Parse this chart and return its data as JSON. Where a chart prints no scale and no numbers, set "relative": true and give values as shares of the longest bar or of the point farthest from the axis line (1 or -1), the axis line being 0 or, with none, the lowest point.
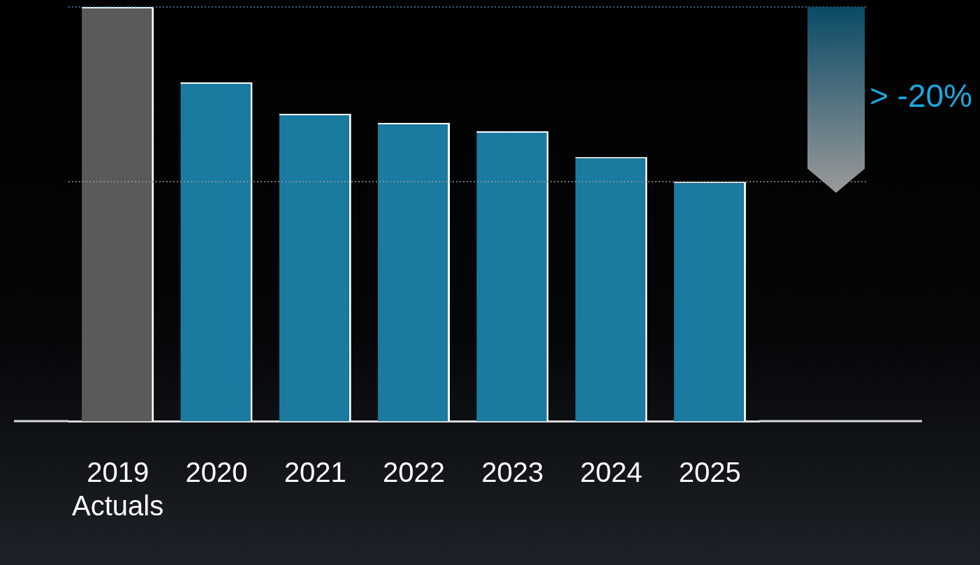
{
  "chart_data": {
    "type": "bar",
    "relative": true,
    "legend": false,
    "data_labels": false,
    "categories": [
      "2019\nActuals",
      "2020",
      "2021",
      "2022",
      "2023",
      "2024",
      "2025"
    ],
    "values": [
      1,
      0.818,
      0.742,
      0.72,
      0.7,
      0.638,
      0.578
    ],
    "colors": [
      "#5a5a5a",
      "#1a7aa0",
      "#1a7aa0",
      "#1a7aa0",
      "#1a7aa0",
      "#1a7aa0",
      "#1a7aa0"
    ],
    "ref_lines": [
      {
        "axis": "y",
        "value": 1,
        "color": "#3a8fb8",
        "line_style": "dotted"
      },
      {
        "axis": "y",
        "value": 0.578,
        "color": "#9a9a9a",
        "line_style": "dotted"
      }
    ],
    "annotations": [
      "> -20%"
    ]
  }
}
